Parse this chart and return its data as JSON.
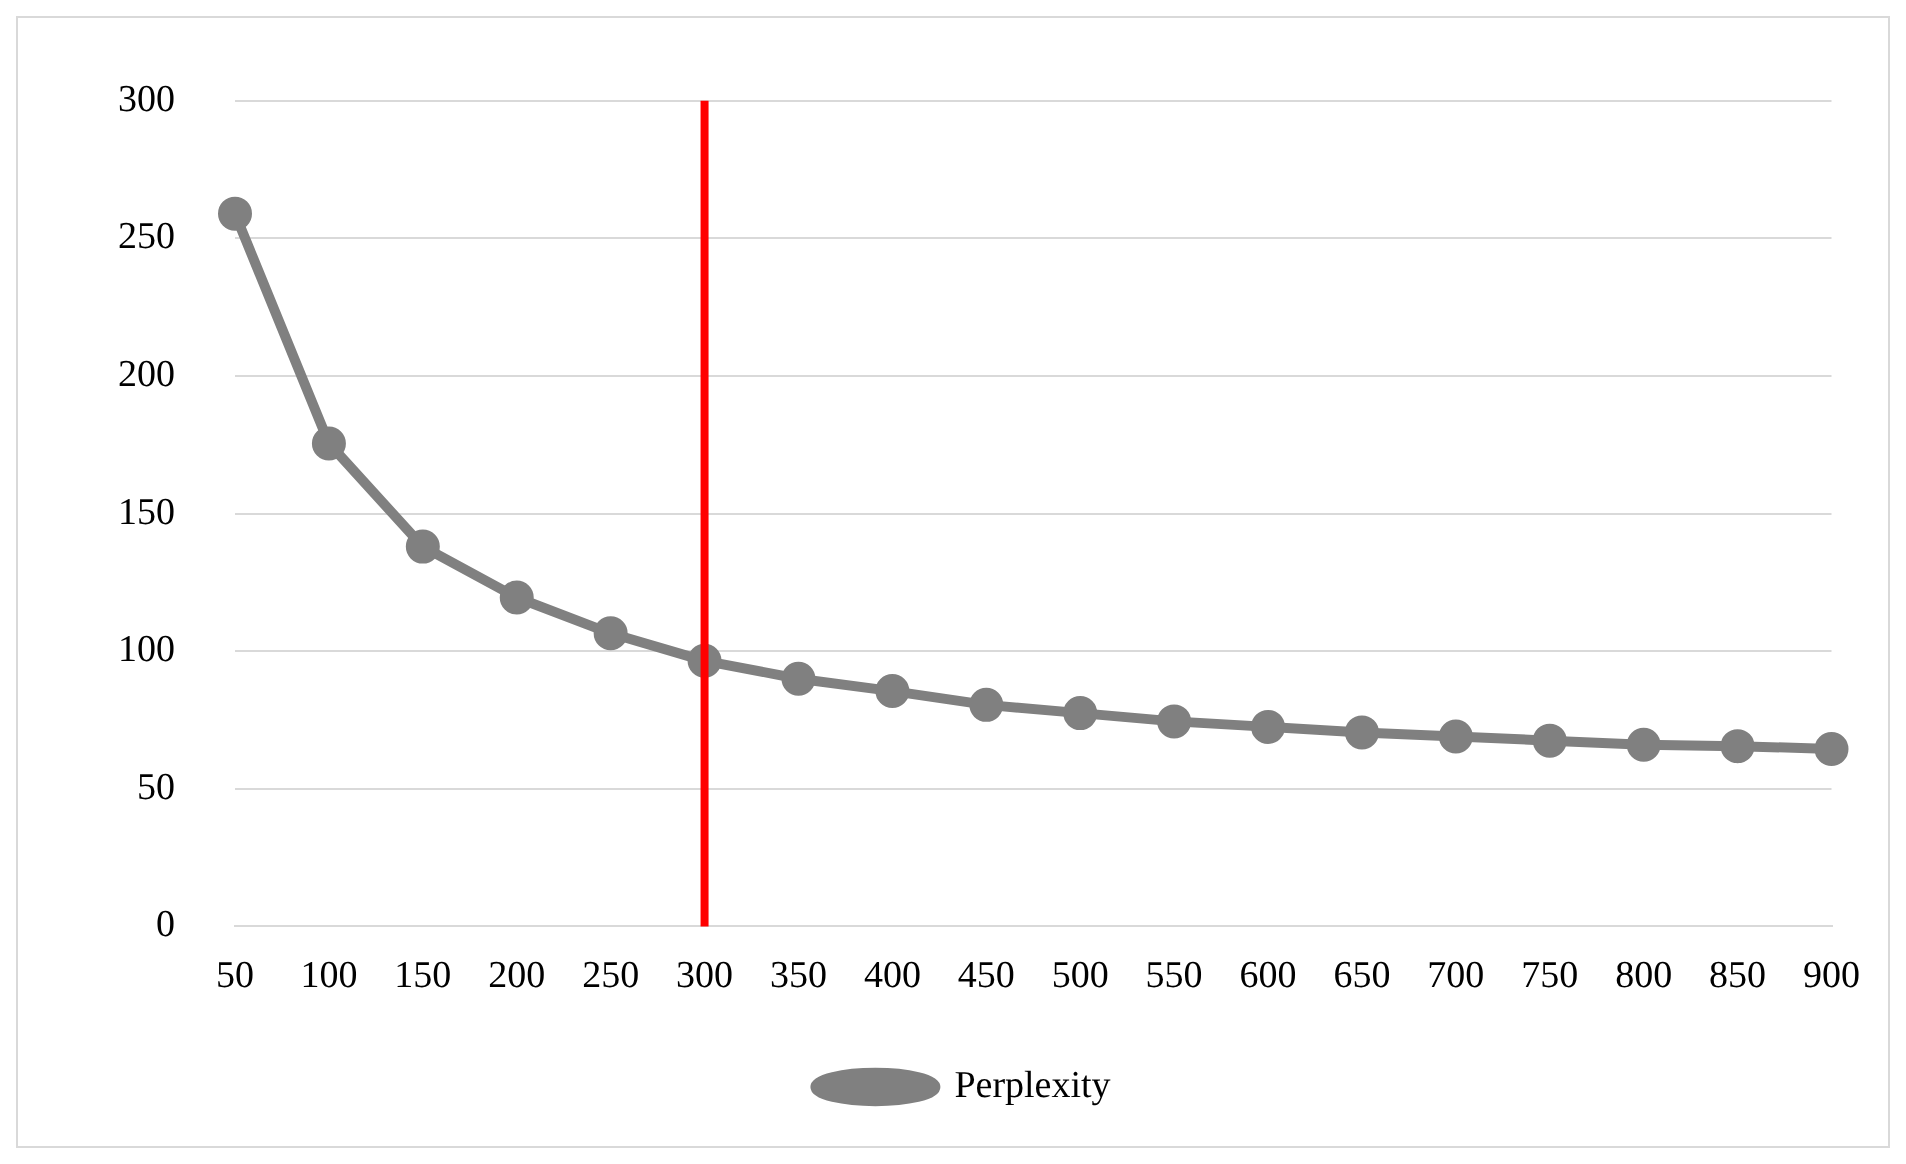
{
  "chart_data": {
    "type": "line",
    "categories": [
      "50",
      "100",
      "150",
      "200",
      "250",
      "300",
      "350",
      "400",
      "450",
      "500",
      "550",
      "600",
      "650",
      "700",
      "750",
      "800",
      "850",
      "900"
    ],
    "series": [
      {
        "name": "Perplexity",
        "color": "#808080",
        "values": [
          259,
          175.5,
          138,
          119.5,
          106.5,
          96.5,
          90,
          85.5,
          80.5,
          77.5,
          74.5,
          72.5,
          70.5,
          69,
          67.5,
          66,
          65.5,
          64.5
        ]
      }
    ],
    "ylim": [
      0,
      300
    ],
    "yticks": [
      0,
      50,
      100,
      150,
      200,
      250,
      300
    ],
    "ref_lines": [
      {
        "axis": "x",
        "value": "300",
        "color": "#ff0000"
      }
    ],
    "grid": "y",
    "legend": "bottom",
    "marker": "circle",
    "line_style": "solid"
  }
}
